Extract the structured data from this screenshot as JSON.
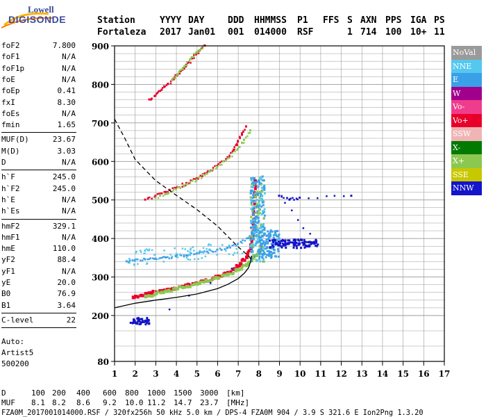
{
  "logo": {
    "line1": "Lowell",
    "line2": "DIGISONDE"
  },
  "header": {
    "labels": [
      "Station",
      "YYYY",
      "DAY",
      "DDD",
      "HHMMSS",
      "P1",
      "FFS",
      "S",
      "AXN",
      "PPS",
      "IGA",
      "PS"
    ],
    "values": [
      "Fortaleza",
      "2017",
      "Jan01",
      "001",
      "014000",
      "RSF",
      "",
      "1",
      "714",
      "100",
      "10+",
      "11"
    ]
  },
  "params_group1": [
    {
      "name": "foF2",
      "value": "7.800"
    },
    {
      "name": "foF1",
      "value": "N/A"
    },
    {
      "name": "foF1p",
      "value": "N/A"
    },
    {
      "name": "foE",
      "value": "N/A"
    },
    {
      "name": "foEp",
      "value": "0.41"
    },
    {
      "name": "fxI",
      "value": "8.30"
    },
    {
      "name": "foEs",
      "value": "N/A"
    },
    {
      "name": "fmin",
      "value": "1.65"
    }
  ],
  "params_group2": [
    {
      "name": "MUF(D)",
      "value": "23.67"
    },
    {
      "name": "M(D)",
      "value": "3.03"
    },
    {
      "name": "D",
      "value": "N/A"
    }
  ],
  "params_group3": [
    {
      "name": "h`F",
      "value": "245.0"
    },
    {
      "name": "h`F2",
      "value": "245.0"
    },
    {
      "name": "h`E",
      "value": "N/A"
    },
    {
      "name": "h`Es",
      "value": "N/A"
    }
  ],
  "params_group4": [
    {
      "name": "hmF2",
      "value": "329.1"
    },
    {
      "name": "hmF1",
      "value": "N/A"
    },
    {
      "name": "hmE",
      "value": "110.0"
    },
    {
      "name": "yF2",
      "value": "88.4"
    },
    {
      "name": "yF1",
      "value": "N/A"
    },
    {
      "name": "yE",
      "value": "20.0"
    },
    {
      "name": "B0",
      "value": "76.9"
    },
    {
      "name": "B1",
      "value": "3.64"
    }
  ],
  "params_group5": [
    {
      "name": "C-level",
      "value": "22"
    }
  ],
  "auto": {
    "line1": "Auto:",
    "line2": "Artist5",
    "line3": "500200"
  },
  "legend": [
    {
      "label": "NoVal",
      "color": "#9a9a9a"
    },
    {
      "label": "NNE",
      "color": "#55c8f0"
    },
    {
      "label": "E",
      "color": "#3aa0e8"
    },
    {
      "label": "W",
      "color": "#a0008c"
    },
    {
      "label": "Vo-",
      "color": "#f03c8c"
    },
    {
      "label": "Vo+",
      "color": "#e8002a"
    },
    {
      "label": "SSW",
      "color": "#f0b4b4"
    },
    {
      "label": "X-",
      "color": "#007a00"
    },
    {
      "label": "X+",
      "color": "#8cc850"
    },
    {
      "label": "SSE",
      "color": "#c8c800"
    },
    {
      "label": "NNW",
      "color": "#1414c8"
    }
  ],
  "bottom": {
    "d_label": "D",
    "d_values": [
      "100",
      "200",
      "400",
      "600",
      "800",
      "1000",
      "1500",
      "3000",
      "[km]"
    ],
    "muf_label": "MUF",
    "muf_values": [
      "8.1",
      "8.2",
      "8.6",
      "9.2",
      "10.0",
      "11.2",
      "14.7",
      "23.7",
      "[MHz]"
    ],
    "info": "FZA0M_2017001014000.RSF / 320fx256h 50 kHz 5.0 km / DPS-4 FZA0M 904 / 3.9 S 321.6 E  Ion2Png 1.3.20"
  },
  "chart_data": {
    "type": "scatter",
    "title": "",
    "xlabel": "",
    "ylabel": "",
    "xlim": [
      1,
      17
    ],
    "ylim": [
      80,
      900
    ],
    "x_ticks": [
      "1",
      "2",
      "3",
      "4",
      "5",
      "6",
      "7",
      "8",
      "9",
      "10",
      "11",
      "12",
      "13",
      "14",
      "15",
      "16",
      "17"
    ],
    "y_ticks": [
      "80",
      "200",
      "300",
      "400",
      "500",
      "600",
      "700",
      "800",
      "900"
    ],
    "grid": true,
    "series": [
      {
        "name": "O-trace first hop (Vo+/Vo-)",
        "color": "#e8002a",
        "points": [
          [
            1.9,
            248
          ],
          [
            2.3,
            253
          ],
          [
            2.8,
            260
          ],
          [
            3.3,
            265
          ],
          [
            3.8,
            270
          ],
          [
            4.3,
            276
          ],
          [
            4.8,
            283
          ],
          [
            5.3,
            290
          ],
          [
            5.8,
            298
          ],
          [
            6.3,
            308
          ],
          [
            6.8,
            322
          ],
          [
            7.1,
            335
          ],
          [
            7.4,
            352
          ],
          [
            7.6,
            375
          ],
          [
            7.7,
            410
          ],
          [
            7.75,
            450
          ],
          [
            7.8,
            510
          ],
          [
            7.8,
            550
          ]
        ]
      },
      {
        "name": "X-trace first hop (X+)",
        "color": "#8cc850",
        "points": [
          [
            2.5,
            250
          ],
          [
            3.0,
            258
          ],
          [
            3.5,
            264
          ],
          [
            4.0,
            270
          ],
          [
            4.5,
            276
          ],
          [
            5.0,
            283
          ],
          [
            5.5,
            290
          ],
          [
            6.0,
            298
          ],
          [
            6.5,
            308
          ],
          [
            7.0,
            320
          ],
          [
            7.4,
            333
          ],
          [
            7.7,
            350
          ],
          [
            8.0,
            365
          ],
          [
            8.1,
            380
          ]
        ]
      },
      {
        "name": "O-trace second hop",
        "color": "#e8002a",
        "points": [
          [
            2.5,
            500
          ],
          [
            3.0,
            510
          ],
          [
            3.5,
            520
          ],
          [
            4.0,
            530
          ],
          [
            4.5,
            543
          ],
          [
            5.0,
            555
          ],
          [
            5.5,
            570
          ],
          [
            6.0,
            588
          ],
          [
            6.5,
            610
          ],
          [
            6.8,
            630
          ],
          [
            7.0,
            650
          ],
          [
            7.2,
            670
          ],
          [
            7.4,
            690
          ]
        ]
      },
      {
        "name": "X-trace second hop",
        "color": "#8cc850",
        "points": [
          [
            3.0,
            505
          ],
          [
            3.5,
            515
          ],
          [
            4.0,
            527
          ],
          [
            4.5,
            540
          ],
          [
            5.0,
            552
          ],
          [
            5.5,
            567
          ],
          [
            6.0,
            585
          ],
          [
            6.5,
            607
          ],
          [
            7.0,
            632
          ],
          [
            7.3,
            655
          ],
          [
            7.6,
            680
          ]
        ]
      },
      {
        "name": "O-trace third hop",
        "color": "#e8002a",
        "points": [
          [
            2.7,
            760
          ],
          [
            3.0,
            770
          ],
          [
            3.3,
            785
          ],
          [
            3.6,
            800
          ],
          [
            3.9,
            815
          ],
          [
            4.2,
            833
          ],
          [
            4.5,
            850
          ],
          [
            4.8,
            868
          ],
          [
            5.1,
            885
          ],
          [
            5.4,
            900
          ]
        ]
      },
      {
        "name": "X-trace third hop",
        "color": "#8cc850",
        "points": [
          [
            3.8,
            810
          ],
          [
            4.1,
            826
          ],
          [
            4.4,
            845
          ],
          [
            4.7,
            865
          ],
          [
            5.0,
            883
          ],
          [
            5.3,
            898
          ]
        ]
      },
      {
        "name": "E (spread F echoes)",
        "color": "#3aa0e8",
        "points": [
          [
            1.6,
            340
          ],
          [
            2.0,
            343
          ],
          [
            2.5,
            345
          ],
          [
            3.0,
            347
          ],
          [
            3.5,
            350
          ],
          [
            4.0,
            353
          ],
          [
            4.5,
            355
          ],
          [
            5.0,
            360
          ],
          [
            5.5,
            365
          ],
          [
            6.0,
            370
          ],
          [
            6.5,
            375
          ],
          [
            7.0,
            385
          ],
          [
            7.5,
            400
          ],
          [
            7.8,
            420
          ],
          [
            7.9,
            450
          ],
          [
            8.0,
            480
          ],
          [
            8.1,
            520
          ],
          [
            8.2,
            560
          ],
          [
            8.3,
            380
          ],
          [
            8.5,
            400
          ],
          [
            8.6,
            420
          ]
        ]
      },
      {
        "name": "NNW echoes",
        "color": "#1414c8",
        "points": [
          [
            1.8,
            180
          ],
          [
            2.0,
            183
          ],
          [
            2.2,
            185
          ],
          [
            2.4,
            182
          ],
          [
            2.6,
            184
          ],
          [
            8.8,
            385
          ],
          [
            9.0,
            390
          ],
          [
            9.5,
            388
          ],
          [
            10.0,
            385
          ],
          [
            10.5,
            390
          ],
          [
            10.8,
            388
          ],
          [
            9.0,
            510
          ],
          [
            9.5,
            500
          ],
          [
            10.0,
            505
          ],
          [
            12.5,
            510
          ]
        ]
      },
      {
        "name": "Model profile (solid)",
        "color": "#000000",
        "points": [
          [
            1.0,
            220
          ],
          [
            2.0,
            232
          ],
          [
            3.0,
            240
          ],
          [
            4.0,
            247
          ],
          [
            5.0,
            256
          ],
          [
            6.0,
            270
          ],
          [
            6.5,
            281
          ],
          [
            7.0,
            296
          ],
          [
            7.3,
            310
          ],
          [
            7.5,
            324
          ],
          [
            7.6,
            340
          ],
          [
            7.65,
            355
          ]
        ]
      },
      {
        "name": "MUF curve (dashed)",
        "color": "#000000",
        "points": [
          [
            1.0,
            710
          ],
          [
            1.5,
            660
          ],
          [
            2.0,
            605
          ],
          [
            3.0,
            550
          ],
          [
            4.0,
            512
          ],
          [
            5.0,
            475
          ],
          [
            6.0,
            432
          ],
          [
            6.5,
            405
          ],
          [
            7.0,
            378
          ],
          [
            7.5,
            355
          ],
          [
            7.7,
            340
          ]
        ]
      }
    ]
  }
}
